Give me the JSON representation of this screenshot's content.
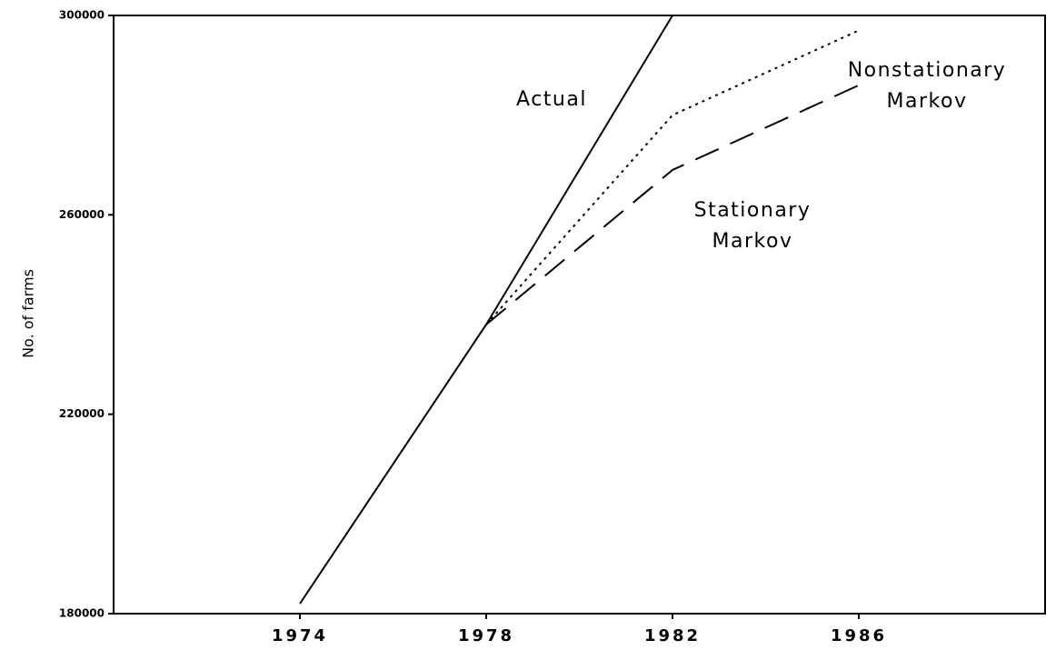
{
  "chart_data": {
    "type": "line",
    "ylabel": "No. of farms",
    "x": [
      1974,
      1978,
      1982,
      1986
    ],
    "xlim": [
      1970,
      1990
    ],
    "xticks": [
      1974,
      1978,
      1982,
      1986
    ],
    "ylim": [
      180000,
      300000
    ],
    "yticks": [
      180000,
      220000,
      260000,
      300000
    ],
    "grid": false,
    "series": [
      {
        "name": "Actual",
        "color": "#000000",
        "style": "solid",
        "values": [
          182000,
          238000,
          300000,
          null
        ]
      },
      {
        "name": "Nonstationary Markov",
        "color": "#000000",
        "style": "dotted",
        "values": [
          null,
          238000,
          280000,
          297000
        ]
      },
      {
        "name": "Stationary Markov",
        "color": "#000000",
        "style": "dashed",
        "values": [
          null,
          238000,
          269000,
          286000
        ]
      }
    ]
  }
}
